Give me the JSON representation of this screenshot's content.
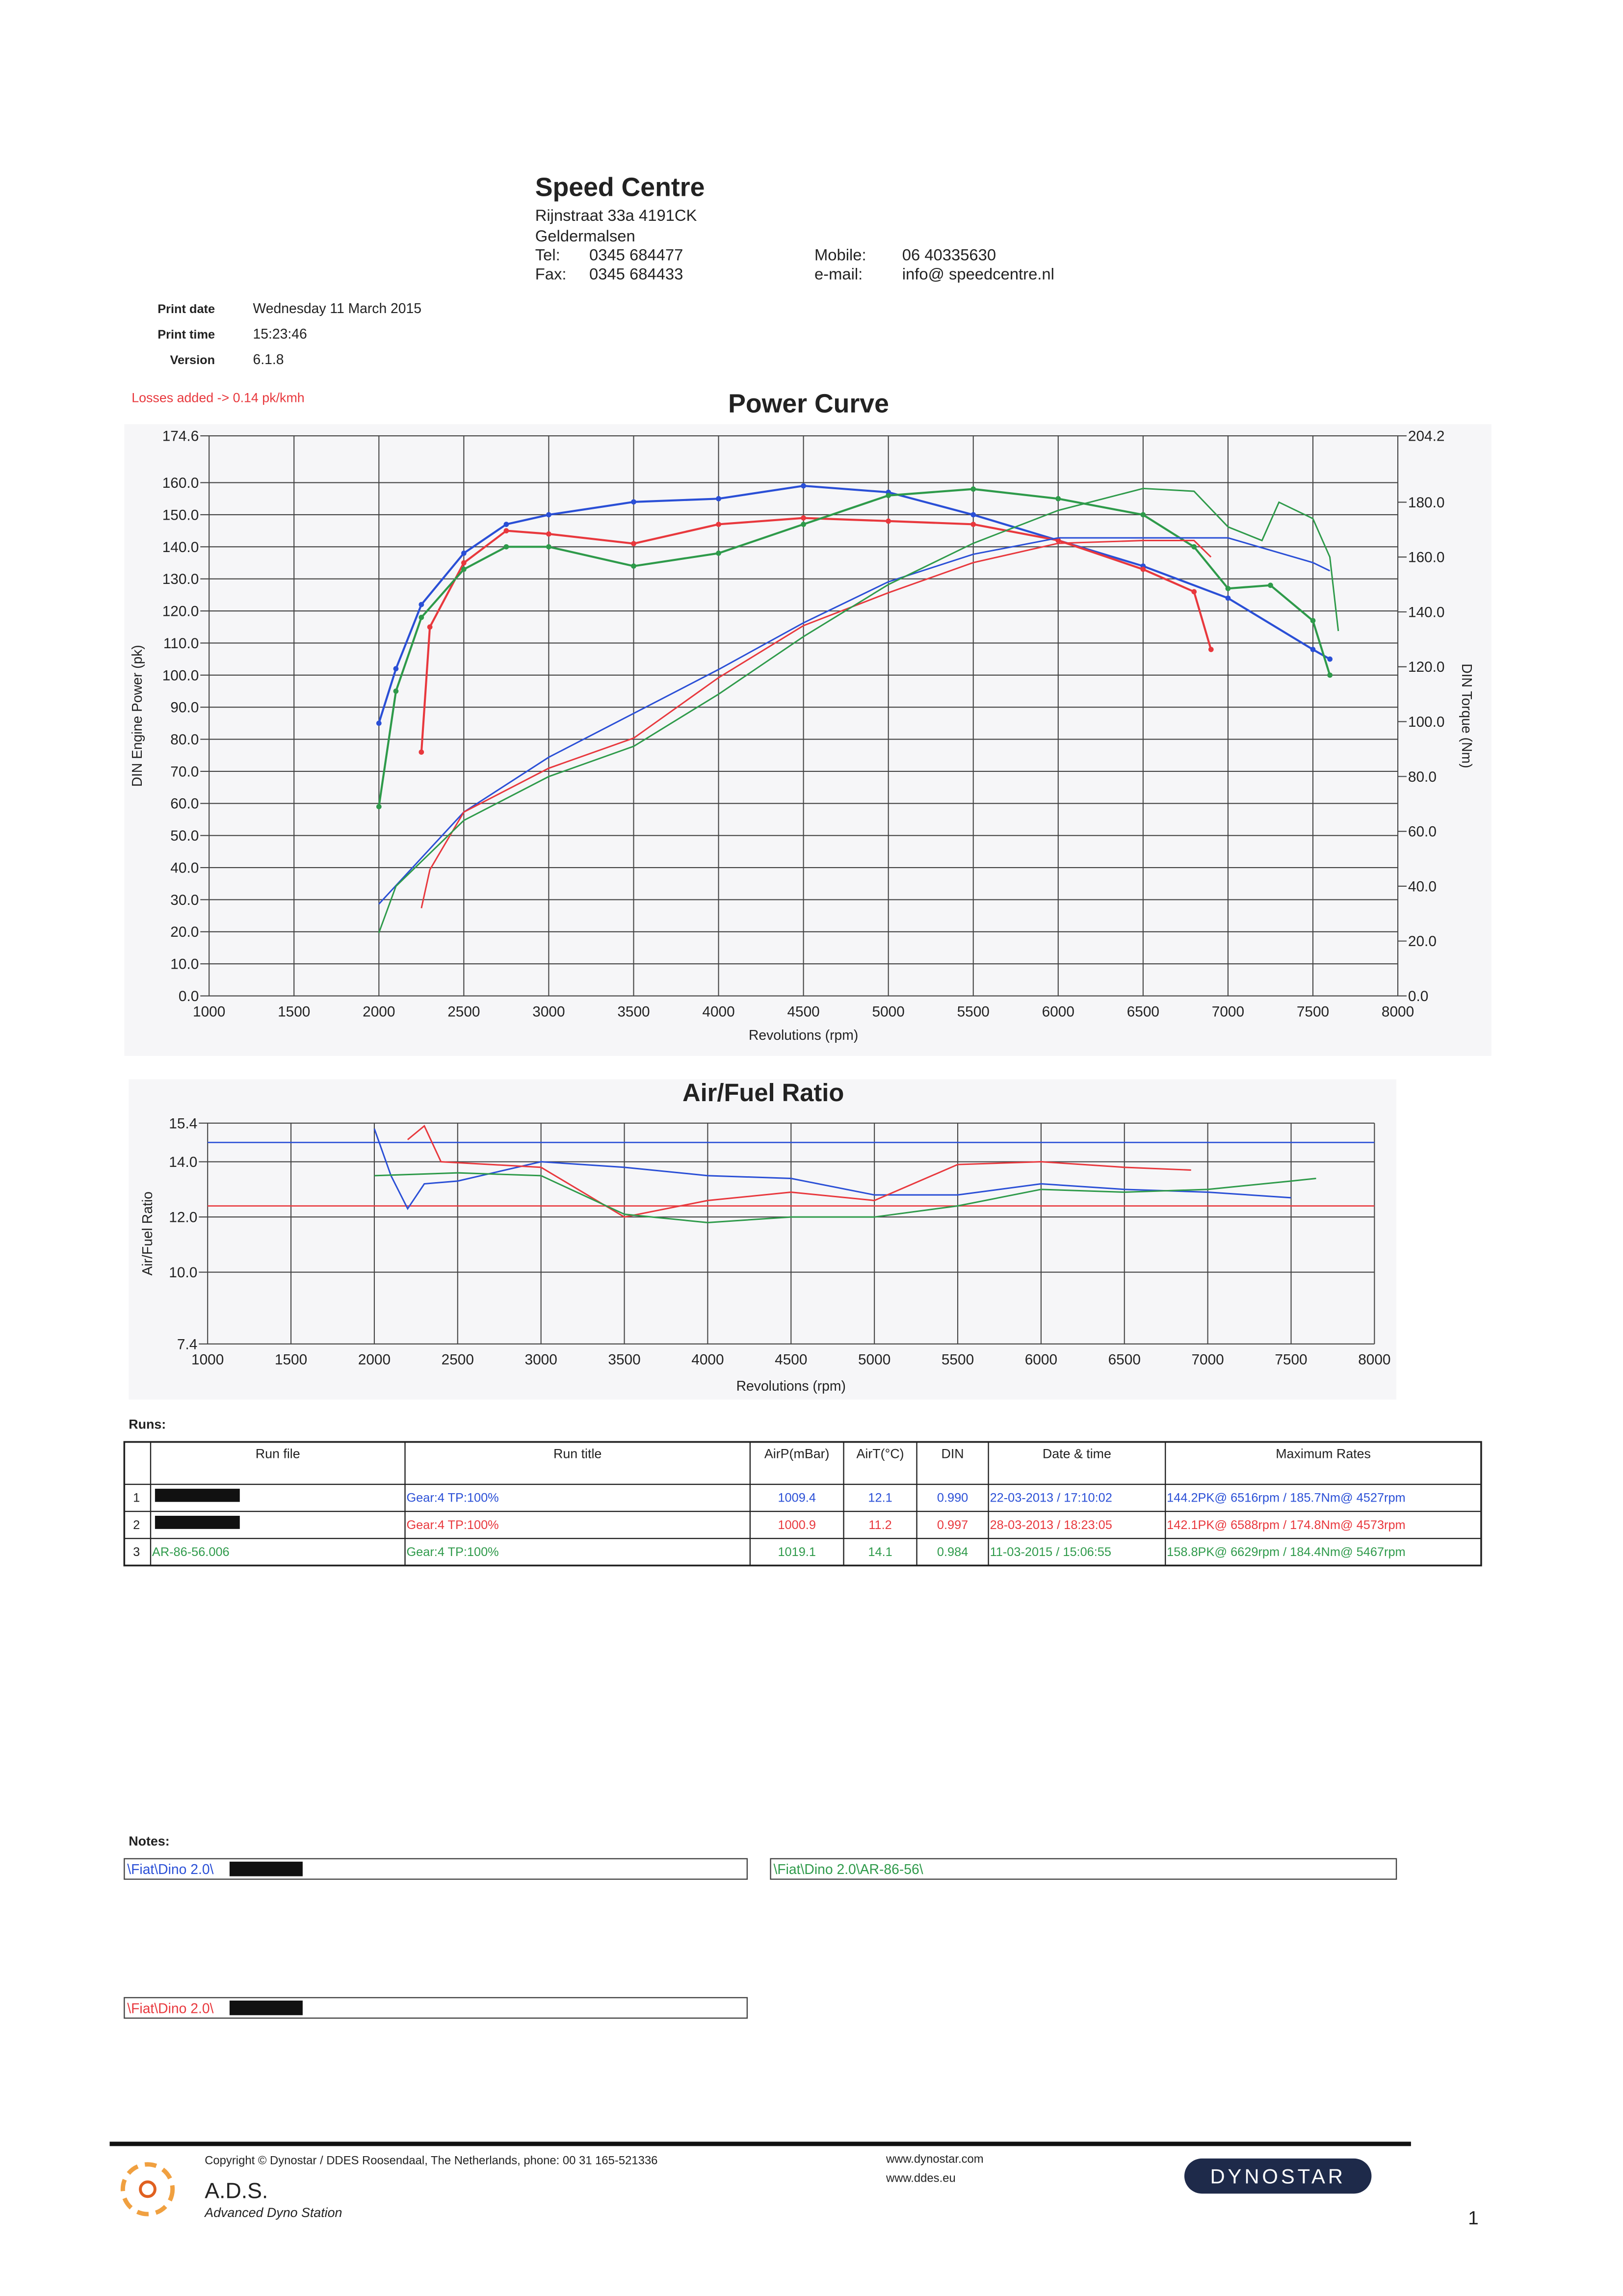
{
  "header": {
    "company": "Speed Centre",
    "address": "Rijnstraat 33a 4191CK",
    "city": "Geldermalsen",
    "tel_label": "Tel:",
    "tel": "0345 684477",
    "fax_label": "Fax:",
    "fax": "0345 684433",
    "mobile_label": "Mobile:",
    "mobile": "06 40335630",
    "email_label": "e-mail:",
    "email": "info@ speedcentre.nl"
  },
  "print_info": [
    {
      "label": "Print date",
      "value": "Wednesday 11 March 2015"
    },
    {
      "label": "Print time",
      "value": "15:23:46"
    },
    {
      "label": "Version",
      "value": "6.1.8"
    }
  ],
  "losses_note": "Losses added -> 0.14 pk/kmh",
  "chart_data": [
    {
      "type": "line",
      "title": "Power Curve",
      "x_label": "Revolutions (rpm)",
      "y_label": "DIN Engine Power (pk)",
      "y2_label": "DIN Torque (Nm)",
      "grid": true,
      "xlim": [
        1000,
        8000
      ],
      "xticks": [
        1000,
        1500,
        2000,
        2500,
        3000,
        3500,
        4000,
        4500,
        5000,
        5500,
        6000,
        6500,
        7000,
        7500,
        8000
      ],
      "ylim": [
        0,
        174.6
      ],
      "yticks": [
        {
          "value": 0,
          "label": "0.0"
        },
        {
          "value": 10,
          "label": "10.0"
        },
        {
          "value": 20,
          "label": "20.0"
        },
        {
          "value": 30,
          "label": "30.0"
        },
        {
          "value": 40,
          "label": "40.0"
        },
        {
          "value": 50,
          "label": "50.0"
        },
        {
          "value": 60,
          "label": "60.0"
        },
        {
          "value": 70,
          "label": "70.0"
        },
        {
          "value": 80,
          "label": "80.0"
        },
        {
          "value": 90,
          "label": "90.0"
        },
        {
          "value": 100,
          "label": "100.0"
        },
        {
          "value": 110,
          "label": "110.0"
        },
        {
          "value": 120,
          "label": "120.0"
        },
        {
          "value": 130,
          "label": "130.0"
        },
        {
          "value": 140,
          "label": "140.0"
        },
        {
          "value": 150,
          "label": "150.0"
        },
        {
          "value": 160,
          "label": "160.0"
        },
        174.6
      ],
      "y2lim": [
        0,
        204.2
      ],
      "y2ticks": [
        {
          "value": 0,
          "label": "0.0"
        },
        {
          "value": 20,
          "label": "20.0"
        },
        {
          "value": 40,
          "label": "40.0"
        },
        {
          "value": 60,
          "label": "60.0"
        },
        {
          "value": 80,
          "label": "80.0"
        },
        {
          "value": 100,
          "label": "100.0"
        },
        {
          "value": 120,
          "label": "120.0"
        },
        {
          "value": 140,
          "label": "140.0"
        },
        {
          "value": 160,
          "label": "160.0"
        },
        {
          "value": 180,
          "label": "180.0"
        },
        204.2
      ],
      "series": [
        {
          "color": "#2a4fd6",
          "markers": true,
          "x": [
            2000,
            2100,
            2250,
            2500,
            2750,
            3000,
            3500,
            4000,
            4500,
            5000,
            5500,
            6000,
            6500,
            7000,
            7500,
            7600
          ],
          "values": [
            85,
            102,
            122,
            138,
            147,
            150,
            154,
            155,
            159,
            157,
            150,
            142,
            134,
            124,
            108,
            105
          ]
        },
        {
          "color": "#e8383d",
          "markers": true,
          "x": [
            2250,
            2300,
            2500,
            2750,
            3000,
            3500,
            4000,
            4500,
            5000,
            5500,
            6000,
            6500,
            6800,
            6900
          ],
          "values": [
            76,
            115,
            135,
            145,
            144,
            141,
            147,
            149,
            148,
            147,
            142,
            133,
            126,
            108
          ]
        },
        {
          "color": "#2e9a4a",
          "markers": true,
          "x": [
            2000,
            2100,
            2250,
            2500,
            2750,
            3000,
            3500,
            4000,
            4500,
            5000,
            5500,
            6000,
            6500,
            6800,
            7000,
            7250,
            7500,
            7600
          ],
          "values": [
            59,
            95,
            118,
            133,
            140,
            140,
            134,
            138,
            147,
            156,
            158,
            155,
            150,
            140,
            127,
            128,
            117,
            100
          ]
        },
        {
          "color": "#2a4fd6",
          "axis": "y2",
          "x": [
            2000,
            2500,
            3000,
            3500,
            4000,
            4500,
            5000,
            5500,
            6000,
            6500,
            7000,
            7500,
            7600
          ],
          "values": [
            33.5,
            67,
            87,
            103,
            119,
            136,
            151,
            161,
            167,
            167,
            167,
            158,
            155
          ]
        },
        {
          "color": "#e8383d",
          "axis": "y2",
          "x": [
            2250,
            2300,
            2500,
            3000,
            3500,
            4000,
            4500,
            5000,
            5500,
            6000,
            6500,
            6800,
            6900
          ],
          "values": [
            32,
            46,
            67,
            83,
            94,
            116,
            135,
            147,
            158,
            165,
            166,
            166,
            160
          ]
        },
        {
          "color": "#2e9a4a",
          "axis": "y2",
          "x": [
            2000,
            2100,
            2500,
            3000,
            3500,
            4000,
            4500,
            5000,
            5500,
            6000,
            6500,
            6800,
            7000,
            7200,
            7300,
            7500,
            7600,
            7650
          ],
          "values": [
            23,
            40,
            64,
            80,
            91,
            110,
            131,
            150,
            165,
            177,
            185,
            184,
            171,
            166,
            180,
            174,
            160,
            133
          ]
        }
      ]
    },
    {
      "type": "line",
      "title": "Air/Fuel Ratio",
      "x_label": "Revolutions (rpm)",
      "y_label": "Air/Fuel Ratio",
      "grid": true,
      "xlim": [
        1000,
        8000
      ],
      "xticks": [
        1000,
        1500,
        2000,
        2500,
        3000,
        3500,
        4000,
        4500,
        5000,
        5500,
        6000,
        6500,
        7000,
        7500,
        8000
      ],
      "ylim": [
        7.4,
        15.4
      ],
      "yticks": [
        7.4,
        {
          "value": 10,
          "label": "10.0"
        },
        {
          "value": 12,
          "label": "12.0"
        },
        {
          "value": 14,
          "label": "14.0"
        },
        15.4
      ],
      "reference_lines": [
        {
          "value": 14.7,
          "color": "#2a4fd6"
        },
        {
          "value": 12.4,
          "color": "#e8383d"
        }
      ],
      "series": [
        {
          "color": "#2a4fd6",
          "x": [
            2000,
            2100,
            2200,
            2300,
            2500,
            3000,
            3500,
            4000,
            4500,
            5000,
            5500,
            6000,
            6500,
            7000,
            7500
          ],
          "values": [
            15.2,
            13.5,
            12.3,
            13.2,
            13.3,
            14,
            13.8,
            13.5,
            13.4,
            12.8,
            12.8,
            13.2,
            13,
            12.9,
            12.7
          ]
        },
        {
          "color": "#e8383d",
          "x": [
            2200,
            2300,
            2400,
            3000,
            3500,
            4000,
            4500,
            5000,
            5500,
            6000,
            6500,
            6900
          ],
          "values": [
            14.8,
            15.3,
            14,
            13.8,
            12,
            12.6,
            12.9,
            12.6,
            13.9,
            14,
            13.8,
            13.7
          ]
        },
        {
          "color": "#2e9a4a",
          "x": [
            2000,
            2500,
            3000,
            3500,
            4000,
            4500,
            5000,
            5500,
            6000,
            6500,
            7000,
            7500,
            7650
          ],
          "values": [
            13.5,
            13.6,
            13.5,
            12.1,
            11.8,
            12,
            12,
            12.4,
            13,
            12.9,
            13,
            13.3,
            13.4
          ]
        }
      ]
    }
  ],
  "runs": {
    "title": "Runs:",
    "columns": [
      "Run file",
      "Run title",
      "AirP(mBar)",
      "AirT(°C)",
      "DIN",
      "Date & time",
      "Maximum Rates"
    ],
    "rows": [
      [
        "1",
        null,
        "Gear:4 TP:100%",
        "1009.4",
        "12.1",
        "0.990",
        "22-03-2013 / 17:10:02",
        "144.2PK@ 6516rpm / 185.7Nm@ 4527rpm"
      ],
      [
        "2",
        null,
        "Gear:4 TP:100%",
        "1000.9",
        "11.2",
        "0.997",
        "28-03-2013 / 18:23:05",
        "142.1PK@ 6588rpm / 174.8Nm@ 4573rpm"
      ],
      [
        "3",
        "AR-86-56.006",
        "Gear:4 TP:100%",
        "1019.1",
        "14.1",
        "0.984",
        "11-03-2015 / 15:06:55",
        "158.8PK@ 6629rpm / 184.4Nm@ 5467rpm"
      ]
    ],
    "row_colors": [
      "#2a4fd6",
      "#e8383d",
      "#2e9a4a"
    ]
  },
  "notes": {
    "title": "Notes:",
    "entries": [
      {
        "text": "\\Fiat\\Dino 2.0\\",
        "color": "#2a4fd6",
        "redacted": true
      },
      {
        "text": "\\Fiat\\Dino 2.0\\AR-86-56\\",
        "color": "#2e9a4a",
        "redacted": false
      },
      {
        "text": "\\Fiat\\Dino 2.0\\",
        "color": "#e8383d",
        "redacted": true
      }
    ]
  },
  "footer": {
    "copyright": "Copyright © Dynostar / DDES Roosendaal, The Netherlands, phone: 00 31 165-521336",
    "web1": "www.dynostar.com",
    "web2": "www.ddes.eu",
    "brand": "A.D.S.",
    "brand_sub": "Advanced Dyno Station",
    "logo": "DYNOSTAR"
  },
  "page_number": "1"
}
